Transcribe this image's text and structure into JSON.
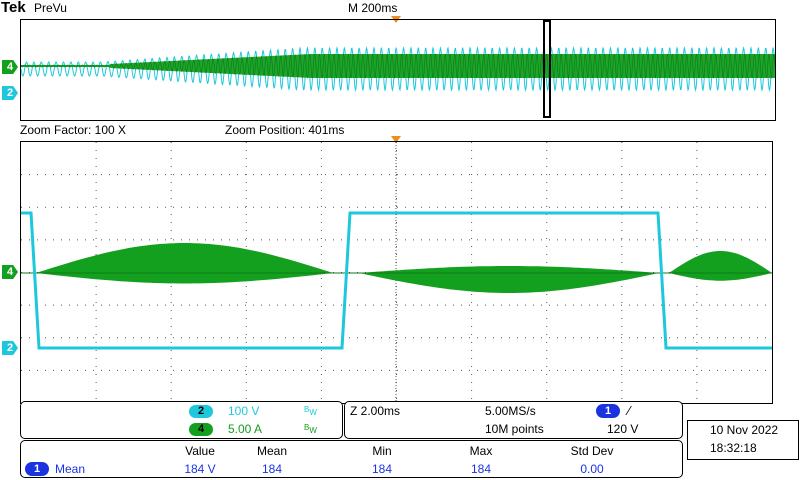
{
  "header": {
    "brand": "Tek",
    "mode": "PreVu",
    "timebase": "M 200ms"
  },
  "zoom": {
    "factor_label": "Zoom Factor: 100 X",
    "position_label": "Zoom Position: 401ms"
  },
  "markers": {
    "ch4": "4",
    "ch2": "2"
  },
  "channels": [
    {
      "number": "2",
      "scale": "100 V",
      "bw": "BW",
      "color": "#1ec8dc"
    },
    {
      "number": "4",
      "scale": "5.00 A",
      "bw": "BW",
      "color": "#13a01e"
    }
  ],
  "acquisition": {
    "zoom_scale": "Z 2.00ms",
    "sample_rate": "5.00MS/s",
    "record_length": "10M points",
    "trigger_channel": "1",
    "trigger_slope": "⁄",
    "trigger_level": "120 V"
  },
  "datetime": {
    "date": "10 Nov 2022",
    "time": "18:32:18"
  },
  "measurements": {
    "headers": [
      "Value",
      "Mean",
      "Min",
      "Max",
      "Std Dev"
    ],
    "rows": [
      {
        "source": "1",
        "type": "Mean",
        "value": "184 V",
        "mean": "184",
        "min": "184",
        "max": "184",
        "std_dev": "0.00"
      }
    ]
  },
  "colors": {
    "ch2": "#1ec8dc",
    "ch4": "#13a01e",
    "ch1": "#1b34e0",
    "trigger": "#f28c1c",
    "grid": "#555555"
  }
}
